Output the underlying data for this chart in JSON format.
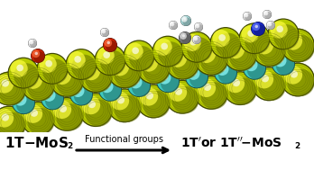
{
  "fig_width": 3.48,
  "fig_height": 1.89,
  "dpi": 100,
  "bg_color": "#ffffff",
  "text_color": "#111111",
  "sulfur_color": "#b8cc00",
  "mo_color": "#3ec8be",
  "oxygen_color": "#cc2200",
  "carbon_color": "#808080",
  "hydrogen_color": "#e8e8e8",
  "nitrogen_color": "#1a2acc",
  "arrow_label": "Functional groups",
  "label_left": "1T-MoS",
  "label_right": "1T' or 1T\"-MoS",
  "sub2": "2",
  "slab_tilt": 0.14,
  "S_r": 19,
  "Mo_r": 13,
  "func_C_r": 7,
  "func_O_r": 8,
  "func_N_r": 8,
  "func_H_r": 5
}
